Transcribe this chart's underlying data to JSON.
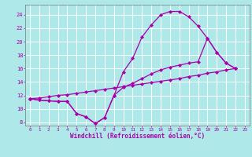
{
  "xlabel": "Windchill (Refroidissement éolien,°C)",
  "bg_color": "#aee8e8",
  "line_color": "#aa00aa",
  "grid_color": "#ffffff",
  "ylim": [
    7.5,
    25.5
  ],
  "xlim": [
    -0.5,
    23.5
  ],
  "yticks": [
    8,
    10,
    12,
    14,
    16,
    18,
    20,
    22,
    24
  ],
  "xticks": [
    0,
    1,
    2,
    3,
    4,
    5,
    6,
    7,
    8,
    9,
    10,
    11,
    12,
    13,
    14,
    15,
    16,
    17,
    18,
    19,
    20,
    21,
    22,
    23
  ],
  "line1_y": [
    11.5,
    11.3,
    11.2,
    11.1,
    11.1,
    9.3,
    8.8,
    7.8,
    8.7,
    12.0,
    15.5,
    17.5,
    20.7,
    22.5,
    24.0,
    24.5,
    24.5,
    23.7,
    22.3,
    20.5,
    18.4,
    16.8,
    16.0,
    null
  ],
  "line2_y": [
    11.5,
    11.3,
    11.2,
    11.1,
    11.1,
    9.3,
    8.8,
    7.8,
    8.7,
    12.0,
    13.2,
    13.8,
    14.5,
    15.2,
    15.8,
    16.2,
    16.5,
    16.8,
    17.0,
    20.5,
    18.4,
    16.8,
    16.0,
    null
  ],
  "line3_y": [
    11.5,
    11.6,
    11.8,
    12.0,
    12.1,
    12.3,
    12.5,
    12.7,
    12.9,
    13.1,
    13.3,
    13.5,
    13.7,
    13.9,
    14.1,
    14.3,
    14.5,
    14.8,
    15.0,
    15.3,
    15.5,
    15.8,
    16.0,
    null
  ]
}
